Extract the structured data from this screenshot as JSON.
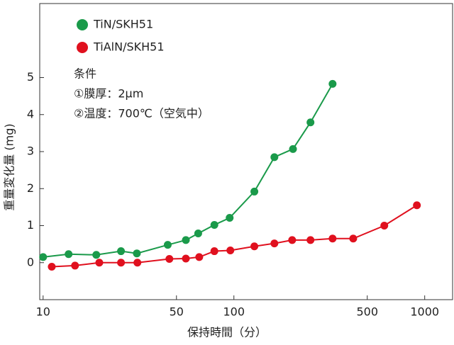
{
  "chart_data": {
    "type": "line",
    "x_label": "保持時間（分）",
    "y_label": "重量変化量 (mg)",
    "annotations": [
      "条件",
      "①膜厚：2μm",
      "②温度：700℃（空気中）"
    ],
    "xscale": "log",
    "xlim": [
      9.6,
      1400
    ],
    "xticks": [
      10,
      50,
      100,
      500,
      1000
    ],
    "ylim": [
      -1,
      7
    ],
    "yticks": [
      0,
      1,
      2,
      3,
      4,
      5
    ],
    "legend": "upper left",
    "series": [
      {
        "name": "TiN/SKH51",
        "color": "#1a9a4a",
        "x": [
          10,
          13.6,
          19,
          25.6,
          31,
          45,
          56,
          65,
          79,
          95,
          128,
          163,
          204,
          252,
          329
        ],
        "values": [
          0.15,
          0.23,
          0.21,
          0.31,
          0.25,
          0.48,
          0.61,
          0.79,
          1.02,
          1.21,
          1.92,
          2.85,
          3.07,
          3.79,
          4.83
        ]
      },
      {
        "name": "TiAlN/SKH51",
        "color": "#e0101e",
        "x": [
          11.1,
          14.7,
          19.7,
          25.6,
          31.2,
          45.9,
          56,
          65.8,
          79,
          95.8,
          128,
          163,
          202,
          252,
          329,
          422,
          614,
          910
        ],
        "values": [
          -0.11,
          -0.08,
          0,
          0,
          0,
          0.1,
          0.11,
          0.15,
          0.31,
          0.33,
          0.44,
          0.52,
          0.61,
          0.61,
          0.65,
          0.65,
          1.0,
          1.55
        ]
      }
    ]
  }
}
